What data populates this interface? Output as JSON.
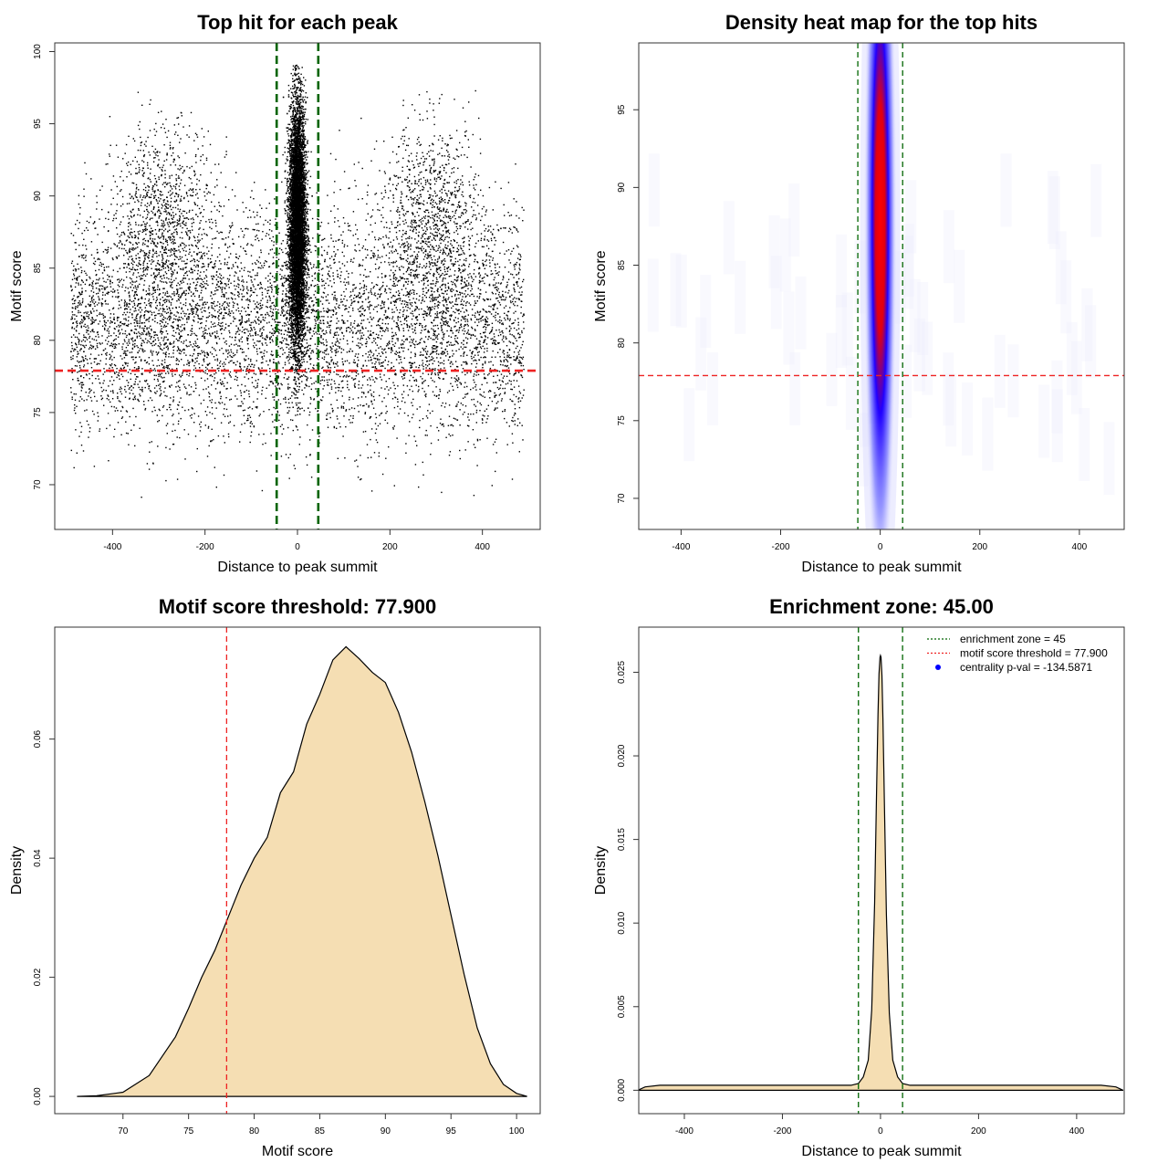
{
  "chart_data": [
    {
      "type": "scatter",
      "title": "Top hit for each peak",
      "xlabel": "Distance to peak summit",
      "ylabel": "Motif score",
      "xlim": [
        -525,
        525
      ],
      "ylim": [
        66.9,
        100.6
      ],
      "xticks": [
        -400,
        -200,
        0,
        200,
        400
      ],
      "yticks": [
        70,
        75,
        80,
        85,
        90,
        95,
        100
      ],
      "vlines": [
        -45,
        45
      ],
      "hlines": [
        77.9
      ],
      "vline_color": "#006400",
      "hline_color": "#ee2222",
      "point_color": "#000000",
      "distribution": {
        "central_cluster": {
          "x_center": 0,
          "x_range": [
            -30,
            30
          ],
          "y_range": [
            68.5,
            99.2
          ],
          "y_peak": 88
        },
        "background": {
          "x_range": [
            -490,
            490
          ],
          "y_range": [
            68,
            99
          ],
          "y_peak": 81
        },
        "side_clusters": [
          {
            "x_center": -290,
            "y_peak": 88
          },
          {
            "x_center": 290,
            "y_peak": 88
          }
        ]
      },
      "grid": false
    },
    {
      "type": "heatmap",
      "title": "Density heat map for the top hits",
      "xlabel": "Distance to peak summit",
      "ylabel": "Motif score",
      "xlim": [
        -485,
        490
      ],
      "ylim": [
        68,
        99.3
      ],
      "xticks": [
        -400,
        -200,
        0,
        200,
        400
      ],
      "yticks": [
        70,
        75,
        80,
        85,
        90,
        95
      ],
      "vlines": [
        -45,
        45
      ],
      "hlines": [
        77.9
      ],
      "colors": [
        "#ffffff",
        "#0000ff",
        "#ff0000"
      ],
      "hotspot": {
        "x": 0,
        "y": 88,
        "x_spread": 14,
        "y_spread": 9
      },
      "grid": false
    },
    {
      "type": "area",
      "title": "Motif score threshold: 77.900",
      "xlabel": "Motif score",
      "ylabel": "Density",
      "xlim": [
        64.8,
        101.8
      ],
      "ylim": [
        -0.0029,
        0.0788
      ],
      "xticks": [
        70,
        75,
        80,
        85,
        90,
        95,
        100
      ],
      "yticks": [
        0.0,
        0.02,
        0.04,
        0.06
      ],
      "ytick_labels": [
        "0.00",
        "0.02",
        "0.04",
        "0.06"
      ],
      "vlines": [
        77.9
      ],
      "fill": "#f5deb3",
      "x": [
        66.5,
        68,
        70,
        72,
        74,
        75,
        76,
        77,
        78,
        79,
        80,
        81,
        82,
        83,
        84,
        85,
        86,
        87,
        88,
        89,
        90,
        91,
        92,
        93,
        94,
        95,
        96,
        97,
        98,
        99,
        100,
        100.8
      ],
      "y": [
        0,
        0.0001,
        0.0007,
        0.0035,
        0.01,
        0.0148,
        0.02,
        0.0245,
        0.03,
        0.0355,
        0.04,
        0.0435,
        0.051,
        0.0545,
        0.0625,
        0.0675,
        0.0733,
        0.0755,
        0.0735,
        0.0712,
        0.0695,
        0.0645,
        0.0578,
        0.0495,
        0.0405,
        0.0305,
        0.0205,
        0.0115,
        0.0055,
        0.002,
        0.0005,
        0
      ],
      "grid": false
    },
    {
      "type": "area",
      "title": "Enrichment zone: 45.00",
      "xlabel": "Distance to peak summit",
      "ylabel": "Density",
      "xlim": [
        -493,
        497
      ],
      "ylim": [
        -0.0014,
        0.0277
      ],
      "xticks": [
        -400,
        -200,
        0,
        200,
        400
      ],
      "yticks": [
        0.0,
        0.005,
        0.01,
        0.015,
        0.02,
        0.025
      ],
      "ytick_labels": [
        "0.000",
        "0.005",
        "0.010",
        "0.015",
        "0.020",
        "0.025"
      ],
      "vlines": [
        -45,
        45
      ],
      "fill": "#f5deb3",
      "x": [
        -495,
        -480,
        -450,
        -400,
        -300,
        -200,
        -100,
        -60,
        -45,
        -35,
        -25,
        -18,
        -12,
        -8,
        -5,
        -3,
        -1,
        0,
        1,
        3,
        5,
        8,
        12,
        18,
        25,
        35,
        45,
        60,
        100,
        200,
        300,
        400,
        450,
        480,
        495
      ],
      "y": [
        0,
        0.0002,
        0.0003,
        0.0003,
        0.0003,
        0.0003,
        0.0003,
        0.0003,
        0.0004,
        0.0008,
        0.0018,
        0.0048,
        0.0112,
        0.0178,
        0.0225,
        0.0249,
        0.0259,
        0.026,
        0.0259,
        0.0248,
        0.0222,
        0.0172,
        0.0105,
        0.0046,
        0.0018,
        0.0008,
        0.0004,
        0.0003,
        0.0003,
        0.0003,
        0.0003,
        0.0003,
        0.0003,
        0.0002,
        0
      ],
      "legend": {
        "placement": "top-right",
        "entries": [
          {
            "label": "enrichment zone = 45",
            "color": "#006400",
            "style": "dotted-line"
          },
          {
            "label": "motif score threshold = 77.900",
            "color": "#ee2222",
            "style": "dotted-line"
          },
          {
            "label": "centrality p-val = -134.5871",
            "color": "#0000ff",
            "style": "point"
          }
        ]
      },
      "grid": false
    }
  ]
}
